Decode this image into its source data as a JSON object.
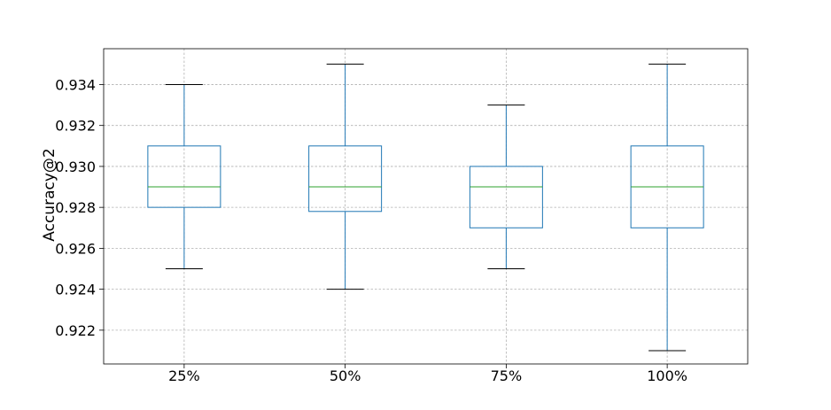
{
  "chart_data": {
    "type": "box",
    "title": "",
    "xlabel": "",
    "ylabel": "Accuracy@2",
    "categories": [
      "25%",
      "50%",
      "75%",
      "100%"
    ],
    "boxes": [
      {
        "category": "25%",
        "whisker_low": 0.925,
        "q1": 0.928,
        "median": 0.929,
        "q3": 0.931,
        "whisker_high": 0.934
      },
      {
        "category": "50%",
        "whisker_low": 0.924,
        "q1": 0.9278,
        "median": 0.929,
        "q3": 0.931,
        "whisker_high": 0.935
      },
      {
        "category": "75%",
        "whisker_low": 0.925,
        "q1": 0.927,
        "median": 0.929,
        "q3": 0.93,
        "whisker_high": 0.933
      },
      {
        "category": "100%",
        "whisker_low": 0.921,
        "q1": 0.927,
        "median": 0.929,
        "q3": 0.931,
        "whisker_high": 0.935
      }
    ],
    "ylim": [
      0.92035,
      0.93575
    ],
    "yticks": [
      0.922,
      0.924,
      0.926,
      0.928,
      0.93,
      0.932,
      0.934
    ],
    "ytick_labels": [
      "0.922",
      "0.924",
      "0.926",
      "0.928",
      "0.930",
      "0.932",
      "0.934"
    ],
    "grid": true,
    "colors": {
      "box": "#1f77b4",
      "median": "#2ca02c",
      "cap": "#000000",
      "grid": "#b0b0b0",
      "frame": "#000000"
    }
  }
}
